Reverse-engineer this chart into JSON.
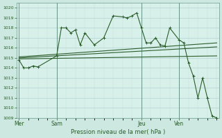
{
  "background_color": "#cce8e0",
  "grid_color_major": "#aacccc",
  "grid_color_minor": "#c0dcd8",
  "line_color": "#2a5c2a",
  "plot_bg": "#d8f0ea",
  "xlabel": "Pression niveau de la mer( hPa )",
  "ylim": [
    1009,
    1020.5
  ],
  "yticks": [
    1009,
    1010,
    1011,
    1012,
    1013,
    1014,
    1015,
    1016,
    1017,
    1018,
    1019,
    1020
  ],
  "xtick_labels": [
    "Mer",
    "Sam",
    "Jeu",
    "Ven"
  ],
  "xtick_positions": [
    0,
    16,
    52,
    68
  ],
  "vline_positions": [
    0,
    16,
    52,
    68
  ],
  "xlim": [
    -1,
    85
  ],
  "series1_x": [
    0,
    2,
    4,
    6,
    8,
    16,
    18,
    20,
    22,
    24,
    26,
    28,
    32,
    36,
    40,
    44,
    46,
    48,
    50,
    52,
    54,
    56,
    58,
    60,
    62,
    64,
    68,
    70,
    72,
    74,
    76,
    78,
    80,
    82,
    84
  ],
  "series1_y": [
    1014.8,
    1014.0,
    1014.0,
    1014.2,
    1014.1,
    1015.2,
    1018.0,
    1018.0,
    1017.5,
    1017.8,
    1016.3,
    1017.5,
    1016.3,
    1017.0,
    1019.2,
    1019.1,
    1019.0,
    1019.2,
    1019.5,
    1018.0,
    1016.5,
    1016.5,
    1017.0,
    1016.3,
    1016.2,
    1018.0,
    1016.8,
    1016.5,
    1014.5,
    1013.2,
    1011.0,
    1013.0,
    1011.0,
    1009.2,
    1009.0
  ],
  "series2_x": [
    0,
    84
  ],
  "series2_y": [
    1015.1,
    1016.5
  ],
  "series3_x": [
    0,
    84
  ],
  "series3_y": [
    1015.0,
    1016.1
  ],
  "series4_x": [
    0,
    84
  ],
  "series4_y": [
    1014.9,
    1015.2
  ]
}
